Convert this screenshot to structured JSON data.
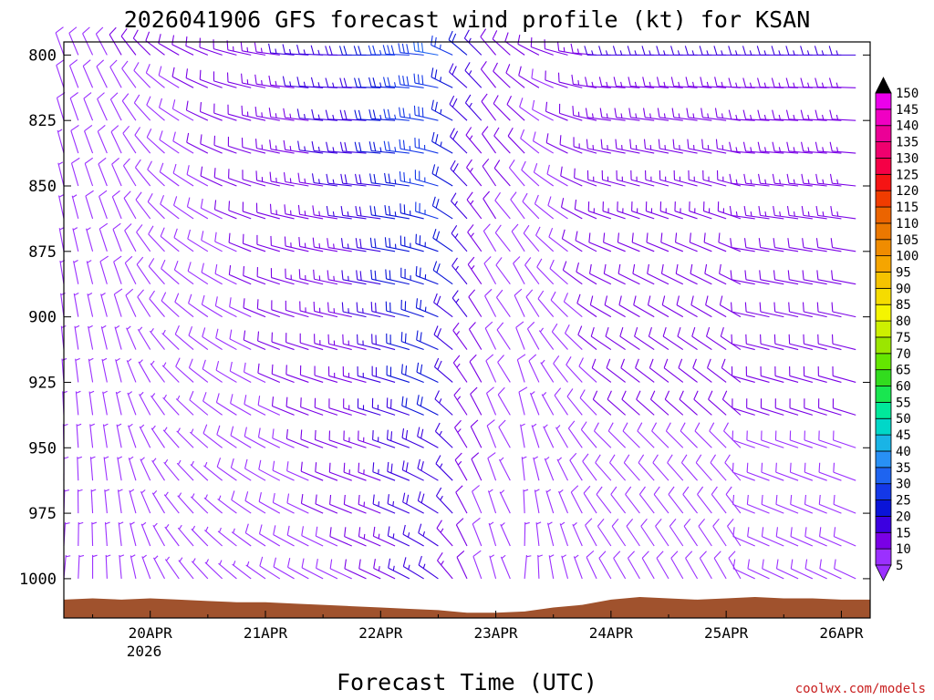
{
  "chart_data": {
    "type": "wind-barb-time-height",
    "title": "2026041906 GFS forecast wind profile (kt) for KSAN",
    "xlabel": "Forecast Time (UTC)",
    "ylabel": "",
    "credit": "coolwx.com/models",
    "year_label": "2026",
    "y_axis": {
      "unit": "hPa",
      "inverted": true,
      "range": [
        795,
        1015
      ],
      "ticks": [
        800,
        825,
        850,
        875,
        900,
        925,
        950,
        975,
        1000
      ],
      "barb_levels": [
        800,
        812.5,
        825,
        837.5,
        850,
        862.5,
        875,
        887.5,
        900,
        912.5,
        925,
        937.5,
        950,
        962.5,
        975,
        987.5,
        1000,
        1012.5
      ]
    },
    "x_axis": {
      "unit": "hours since 2026-04-19 00Z",
      "range": [
        6,
        174
      ],
      "ticks": [
        {
          "hour": 24,
          "label": "20APR"
        },
        {
          "hour": 48,
          "label": "21APR"
        },
        {
          "hour": 72,
          "label": "22APR"
        },
        {
          "hour": 96,
          "label": "23APR"
        },
        {
          "hour": 120,
          "label": "24APR"
        },
        {
          "hour": 144,
          "label": "25APR"
        },
        {
          "hour": 168,
          "label": "26APR"
        }
      ],
      "barb_interval_hours": 3
    },
    "colorbar": {
      "values": [
        5,
        10,
        15,
        20,
        25,
        30,
        35,
        40,
        45,
        50,
        55,
        60,
        65,
        70,
        75,
        80,
        85,
        90,
        95,
        100,
        105,
        110,
        115,
        120,
        125,
        130,
        135,
        140,
        145,
        150
      ],
      "colors": [
        "#9b30ff",
        "#7a00e6",
        "#3c00e0",
        "#0a14d8",
        "#1438e8",
        "#1e64f0",
        "#2890f5",
        "#19b4e6",
        "#00d7c8",
        "#00e89a",
        "#19e650",
        "#32dc1e",
        "#64e600",
        "#9be600",
        "#cdf000",
        "#f5f500",
        "#f5dc00",
        "#f5c300",
        "#f5a500",
        "#f08c00",
        "#eb7800",
        "#eb6400",
        "#f03c00",
        "#f51414",
        "#f50046",
        "#f0006e",
        "#eb0096",
        "#f000c3",
        "#eb00eb",
        "#000000"
      ]
    },
    "series": [
      {
        "name": "surface_pressure_hPa",
        "color": "#a0522d",
        "x": [
          6,
          12,
          18,
          24,
          30,
          36,
          42,
          48,
          54,
          60,
          66,
          72,
          78,
          84,
          90,
          96,
          102,
          108,
          114,
          120,
          126,
          132,
          138,
          144,
          150,
          156,
          162,
          168,
          174
        ],
        "values": [
          1008,
          1007.5,
          1008,
          1007.5,
          1008,
          1008.5,
          1009,
          1009,
          1009.5,
          1010,
          1010.5,
          1011,
          1011.5,
          1012,
          1013,
          1013,
          1012.5,
          1011,
          1010,
          1008,
          1007,
          1007.5,
          1008,
          1007.5,
          1007,
          1007.5,
          1007.5,
          1008,
          1008
        ]
      },
      {
        "name": "wind_speed_kt_at_800hPa",
        "x": [
          6,
          18,
          30,
          42,
          54,
          66,
          72,
          78,
          84,
          90,
          96,
          108,
          120,
          132,
          144,
          156,
          174
        ],
        "values": [
          8,
          10,
          10,
          12,
          15,
          18,
          22,
          28,
          30,
          20,
          12,
          10,
          15,
          15,
          15,
          15,
          15
        ]
      },
      {
        "name": "wind_dir_deg_at_800hPa",
        "x": [
          6,
          18,
          30,
          42,
          54,
          66,
          72,
          78,
          84,
          90,
          96,
          108,
          120,
          132,
          144,
          156,
          174
        ],
        "values": [
          340,
          330,
          300,
          285,
          275,
          270,
          270,
          272,
          280,
          310,
          320,
          290,
          270,
          270,
          270,
          270,
          270
        ]
      }
    ]
  }
}
